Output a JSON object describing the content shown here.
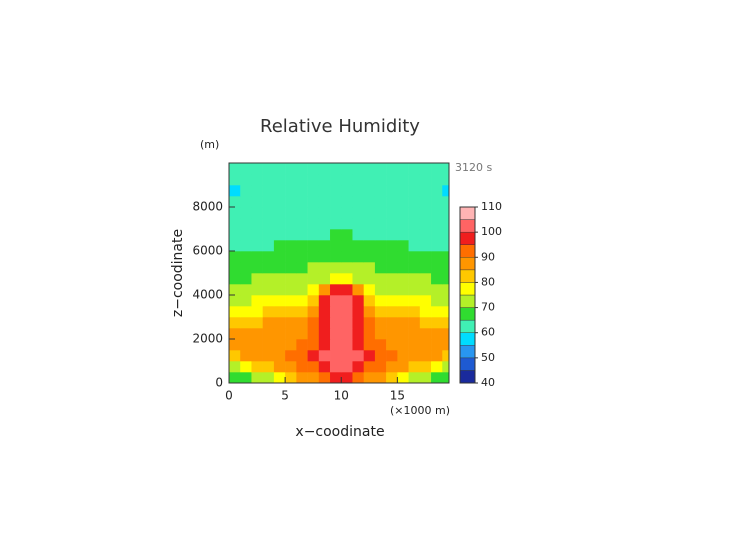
{
  "chart_data": {
    "type": "contour",
    "title": "Relative Humidity",
    "subtitle": "3120 s",
    "x_label": "x−coodinate",
    "y_label": "z−coodinate",
    "x_unit": "(×1000 m)",
    "y_unit": "(m)",
    "xlim": [
      0,
      19.6
    ],
    "ylim": [
      0,
      10000
    ],
    "xticks": [
      0,
      5,
      10,
      15
    ],
    "yticks": [
      0,
      2000,
      4000,
      6000,
      8000
    ],
    "x": [
      0.5,
      1.5,
      2.5,
      3.5,
      4.5,
      5.5,
      6.5,
      7.5,
      8.5,
      9.5,
      10.5,
      11.5,
      12.5,
      13.5,
      14.5,
      15.5,
      16.5,
      17.5,
      18.5,
      19.5
    ],
    "y": [
      250,
      750,
      1250,
      1750,
      2250,
      2750,
      3250,
      3750,
      4250,
      4750,
      5250,
      5750,
      6250,
      6750,
      7250,
      7750,
      8250,
      8750,
      9250,
      9750
    ],
    "values": [
      [
        67,
        67,
        72,
        72,
        77,
        82,
        87,
        87,
        92,
        97,
        97,
        92,
        87,
        87,
        82,
        77,
        72,
        72,
        67,
        67
      ],
      [
        72,
        77,
        82,
        82,
        87,
        87,
        92,
        92,
        97,
        102,
        102,
        97,
        92,
        92,
        87,
        87,
        82,
        82,
        77,
        72
      ],
      [
        82,
        87,
        87,
        87,
        87,
        92,
        92,
        97,
        102,
        102,
        102,
        102,
        97,
        92,
        92,
        87,
        87,
        87,
        87,
        82
      ],
      [
        87,
        87,
        87,
        87,
        87,
        87,
        92,
        92,
        97,
        102,
        102,
        97,
        92,
        92,
        87,
        87,
        87,
        87,
        87,
        87
      ],
      [
        87,
        87,
        87,
        87,
        87,
        87,
        87,
        92,
        97,
        102,
        102,
        97,
        92,
        87,
        87,
        87,
        87,
        87,
        87,
        87
      ],
      [
        82,
        82,
        82,
        87,
        87,
        87,
        87,
        92,
        97,
        102,
        102,
        97,
        92,
        87,
        87,
        87,
        87,
        82,
        82,
        82
      ],
      [
        77,
        77,
        77,
        82,
        82,
        82,
        82,
        87,
        97,
        102,
        102,
        97,
        87,
        82,
        82,
        82,
        82,
        77,
        77,
        77
      ],
      [
        72,
        72,
        77,
        77,
        77,
        77,
        77,
        82,
        97,
        102,
        102,
        97,
        82,
        77,
        77,
        77,
        77,
        77,
        72,
        72
      ],
      [
        72,
        72,
        72,
        72,
        72,
        72,
        72,
        77,
        87,
        97,
        97,
        87,
        77,
        72,
        72,
        72,
        72,
        72,
        72,
        72
      ],
      [
        67,
        67,
        72,
        72,
        72,
        72,
        72,
        72,
        72,
        77,
        77,
        72,
        72,
        72,
        72,
        72,
        72,
        72,
        67,
        67
      ],
      [
        67,
        67,
        67,
        67,
        67,
        67,
        67,
        72,
        72,
        72,
        72,
        72,
        72,
        67,
        67,
        67,
        67,
        67,
        67,
        67
      ],
      [
        67,
        67,
        67,
        67,
        67,
        67,
        67,
        67,
        67,
        67,
        67,
        67,
        67,
        67,
        67,
        67,
        67,
        67,
        67,
        67
      ],
      [
        62,
        62,
        62,
        62,
        67,
        67,
        67,
        67,
        67,
        67,
        67,
        67,
        67,
        67,
        67,
        67,
        62,
        62,
        62,
        62
      ],
      [
        62,
        62,
        62,
        62,
        62,
        62,
        62,
        62,
        62,
        67,
        67,
        62,
        62,
        62,
        62,
        62,
        62,
        62,
        62,
        62
      ],
      [
        62,
        62,
        62,
        62,
        62,
        62,
        62,
        62,
        62,
        62,
        62,
        62,
        62,
        62,
        62,
        62,
        62,
        62,
        62,
        62
      ],
      [
        62,
        62,
        62,
        62,
        62,
        62,
        62,
        62,
        62,
        62,
        62,
        62,
        62,
        62,
        62,
        62,
        62,
        62,
        62,
        62
      ],
      [
        62,
        62,
        62,
        62,
        62,
        62,
        62,
        62,
        62,
        62,
        62,
        62,
        62,
        62,
        62,
        62,
        62,
        62,
        62,
        62
      ],
      [
        57,
        62,
        62,
        62,
        62,
        62,
        62,
        62,
        62,
        62,
        62,
        62,
        62,
        62,
        62,
        62,
        62,
        62,
        62,
        57
      ],
      [
        62,
        62,
        62,
        62,
        62,
        62,
        62,
        62,
        62,
        62,
        62,
        62,
        62,
        62,
        62,
        62,
        62,
        62,
        62,
        62
      ],
      [
        62,
        62,
        62,
        62,
        62,
        62,
        62,
        62,
        62,
        62,
        62,
        62,
        62,
        62,
        62,
        62,
        62,
        62,
        62,
        62
      ]
    ],
    "levels": [
      40,
      45,
      50,
      55,
      60,
      65,
      70,
      75,
      80,
      85,
      90,
      95,
      100,
      105,
      110
    ],
    "colors": [
      "#1a2a9c",
      "#1e5ad2",
      "#2896f0",
      "#00dcff",
      "#40f0b4",
      "#30dc30",
      "#b4f028",
      "#ffff00",
      "#ffc800",
      "#ff9600",
      "#ff6e00",
      "#f01e1e",
      "#ff6464",
      "#ffb4b4"
    ],
    "cbar_ticks": [
      40,
      50,
      60,
      70,
      80,
      90,
      100,
      110
    ]
  }
}
